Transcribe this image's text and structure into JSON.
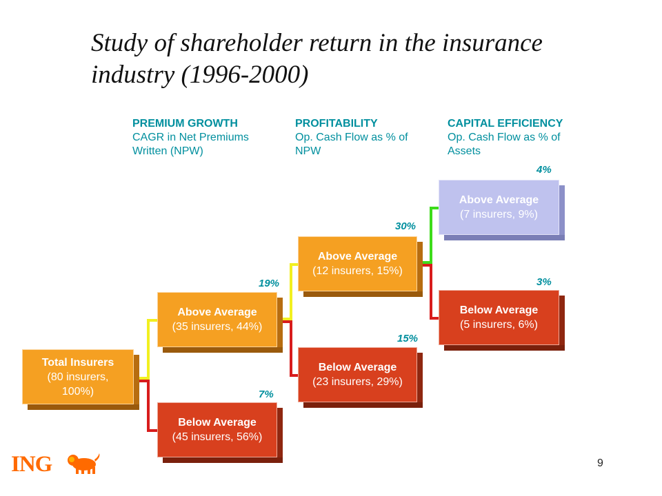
{
  "title": "Study of shareholder return in the insurance industry (1996-2000)",
  "columns": [
    {
      "heading": "PREMIUM GROWTH",
      "sub": "CAGR in Net Premiums Written (NPW)"
    },
    {
      "heading": "PROFITABILITY",
      "sub": "Op. Cash Flow as % of NPW"
    },
    {
      "heading": "CAPITAL EFFICIENCY",
      "sub": "Op. Cash Flow as % of Assets"
    }
  ],
  "nodes": {
    "total": {
      "label": "Total Insurers",
      "detail": "(80 insurers, 100%)"
    },
    "growth_above": {
      "label": "Above Average",
      "detail": "(35 insurers, 44%)",
      "return": "19%"
    },
    "growth_below": {
      "label": "Below Average",
      "detail": "(45 insurers, 56%)",
      "return": "7%"
    },
    "profit_above": {
      "label": "Above Average",
      "detail": "(12 insurers, 15%)",
      "return": "30%"
    },
    "profit_below": {
      "label": "Below Average",
      "detail": "(23 insurers, 29%)",
      "return": "15%"
    },
    "capital_above": {
      "label": "Above Average",
      "detail": "(7 insurers, 9%)",
      "return": "4%"
    },
    "capital_below": {
      "label": "Below Average",
      "detail": "(5 insurers, 6%)",
      "return": "3%"
    }
  },
  "colors": {
    "above": "#f5a022",
    "below": "#d8401e",
    "top": "#bfc2ee",
    "accent": "#008f9e",
    "line_yellow": "#f2f020",
    "line_red": "#d81c1c",
    "line_green": "#3ddc1a"
  },
  "footer": {
    "logo_text": "ING",
    "page_number": "9"
  }
}
